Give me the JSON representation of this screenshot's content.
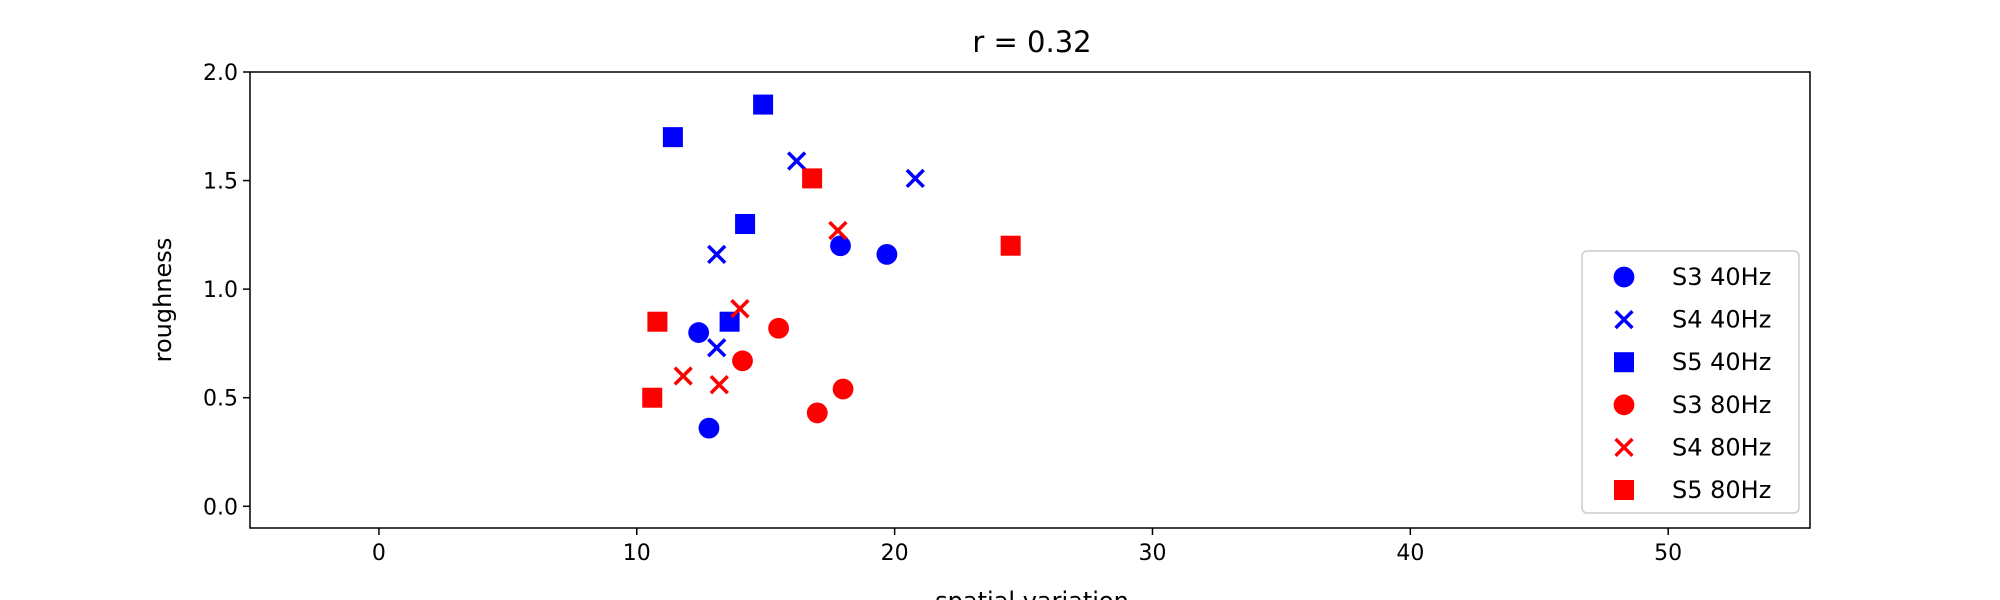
{
  "chart_data": {
    "type": "scatter",
    "title": "r = 0.32",
    "xlabel": "spatial variation",
    "ylabel": "roughness",
    "xlim": [
      -5,
      55.5
    ],
    "ylim": [
      -0.1,
      2.0
    ],
    "xticks": [
      0,
      10,
      20,
      30,
      40,
      50
    ],
    "yticks": [
      0.0,
      0.5,
      1.0,
      1.5,
      2.0
    ],
    "xtick_labels": [
      "0",
      "10",
      "20",
      "30",
      "40",
      "50"
    ],
    "ytick_labels": [
      "0.0",
      "0.5",
      "1.0",
      "1.5",
      "2.0"
    ],
    "grid": false,
    "legend_position": "lower-right",
    "series": [
      {
        "name": "S3 40Hz",
        "marker": "circle",
        "color": "#0000ff",
        "points": [
          [
            12.4,
            0.8
          ],
          [
            12.8,
            0.36
          ],
          [
            17.9,
            1.2
          ],
          [
            19.7,
            1.16
          ]
        ]
      },
      {
        "name": "S4 40Hz",
        "marker": "x",
        "color": "#0000ff",
        "points": [
          [
            13.1,
            1.16
          ],
          [
            13.1,
            0.73
          ],
          [
            16.2,
            1.59
          ],
          [
            20.8,
            1.51
          ]
        ]
      },
      {
        "name": "S5 40Hz",
        "marker": "square",
        "color": "#0000ff",
        "points": [
          [
            11.4,
            1.7
          ],
          [
            13.6,
            0.85
          ],
          [
            14.2,
            1.3
          ],
          [
            14.9,
            1.85
          ]
        ]
      },
      {
        "name": "S3 80Hz",
        "marker": "circle",
        "color": "#ff0000",
        "points": [
          [
            14.1,
            0.67
          ],
          [
            15.5,
            0.82
          ],
          [
            17.0,
            0.43
          ],
          [
            18.0,
            0.54
          ]
        ]
      },
      {
        "name": "S4 80Hz",
        "marker": "x",
        "color": "#ff0000",
        "points": [
          [
            11.8,
            0.6
          ],
          [
            13.2,
            0.56
          ],
          [
            14.0,
            0.91
          ],
          [
            17.8,
            1.27
          ]
        ]
      },
      {
        "name": "S5 80Hz",
        "marker": "square",
        "color": "#ff0000",
        "points": [
          [
            10.6,
            0.5
          ],
          [
            10.8,
            0.85
          ],
          [
            16.8,
            1.51
          ],
          [
            24.5,
            1.2
          ]
        ]
      }
    ]
  }
}
